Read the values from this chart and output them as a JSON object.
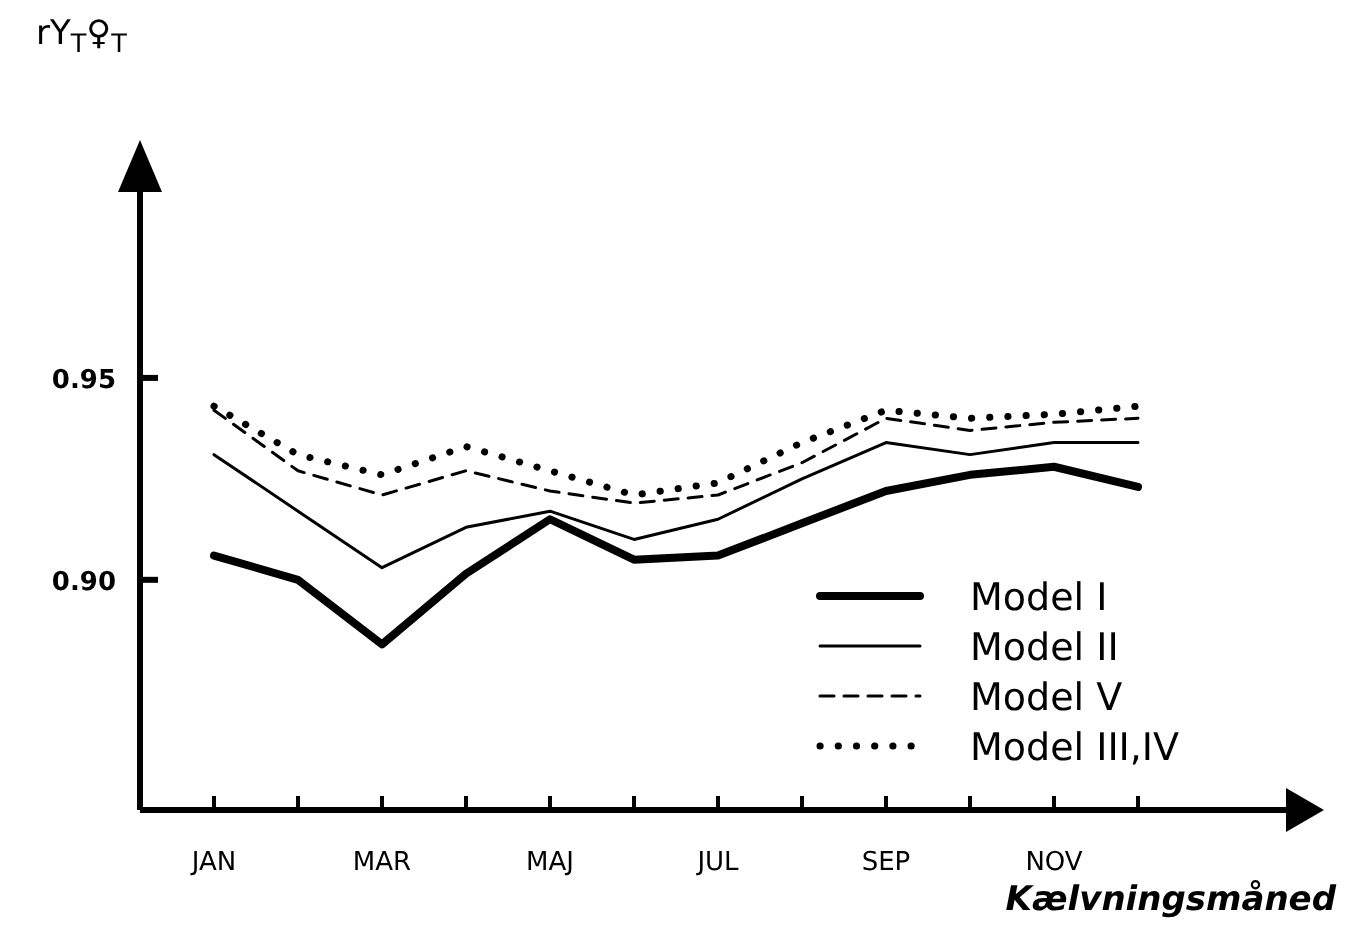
{
  "chart_data": {
    "type": "line",
    "ylabel": "rY$_{T}$♀$_{T}$",
    "xlabel": "Kælvningsmåned",
    "categories": [
      "JAN",
      null,
      "MAR",
      null,
      "MAJ",
      null,
      "JUL",
      null,
      "SEP",
      null,
      "NOV",
      null
    ],
    "ylim": [
      0.843,
      1.0
    ],
    "yticks": [
      {
        "value": 0.9,
        "label": "0.90"
      },
      {
        "value": 0.95,
        "label": "0.95"
      }
    ],
    "grid": false,
    "legend": "bottom right",
    "marker": "none",
    "series": [
      {
        "name": "Model I",
        "color": "#000000",
        "line_style": "solid",
        "values": [
          0.906,
          0.9,
          0.884,
          0.9015,
          0.915,
          0.905,
          0.906,
          0.914,
          0.922,
          0.926,
          0.928,
          0.923
        ]
      },
      {
        "name": "Model II",
        "color": "#000000",
        "line_style": "solid",
        "values": [
          0.931,
          0.917,
          0.903,
          0.913,
          0.917,
          0.91,
          0.915,
          0.925,
          0.934,
          0.931,
          0.934,
          0.934
        ]
      },
      {
        "name": "Model V",
        "color": "#000000",
        "line_style": "dashed",
        "values": [
          0.942,
          0.927,
          0.921,
          0.927,
          0.922,
          0.919,
          0.921,
          0.929,
          0.94,
          0.937,
          0.939,
          0.94
        ]
      },
      {
        "name": "Model III,IV",
        "color": "#000000",
        "line_style": "dotted",
        "values": [
          0.943,
          0.931,
          0.926,
          0.933,
          0.927,
          0.921,
          0.924,
          0.934,
          0.942,
          0.94,
          0.941,
          0.943
        ]
      }
    ]
  }
}
